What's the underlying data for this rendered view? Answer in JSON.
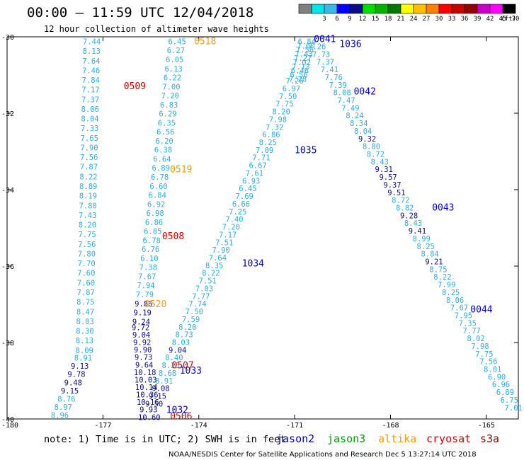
{
  "chart_data": {
    "type": "scatter",
    "title": "00:00 – 11:59 UTC 12/04/2018",
    "subtitle": "12 hour collection of altimeter wave heights",
    "xlim": [
      -180,
      -164
    ],
    "ylim": [
      -40,
      -30
    ],
    "x_ticks": [
      {
        "value": -180,
        "label": "-180"
      },
      {
        "value": -177,
        "label": "-177"
      },
      {
        "value": -174,
        "label": "-174"
      },
      {
        "value": -171,
        "label": "-171"
      },
      {
        "value": -168,
        "label": "-168"
      },
      {
        "value": -165,
        "label": "-165"
      }
    ],
    "y_ticks": [
      {
        "value": -30,
        "label": "-30"
      },
      {
        "value": -32,
        "label": "-32"
      },
      {
        "value": -34,
        "label": "-34"
      },
      {
        "value": -36,
        "label": "-36"
      },
      {
        "value": -38,
        "label": "-38"
      },
      {
        "value": -40,
        "label": "-40"
      }
    ],
    "color_scale": {
      "unit_label": "(ft)",
      "bins": [
        {
          "label": "",
          "color": "#808080"
        },
        {
          "label": "3",
          "color": "#00e5e5"
        },
        {
          "label": "6",
          "color": "#38b7e8"
        },
        {
          "label": "9",
          "color": "#0000ff"
        },
        {
          "label": "12",
          "color": "#0b0b8e"
        },
        {
          "label": "15",
          "color": "#00e000"
        },
        {
          "label": "18",
          "color": "#00b400"
        },
        {
          "label": "21",
          "color": "#007800"
        },
        {
          "label": "24",
          "color": "#ffff00"
        },
        {
          "label": "27",
          "color": "#ffc000"
        },
        {
          "label": "30",
          "color": "#ff8000"
        },
        {
          "label": "33",
          "color": "#ff0000"
        },
        {
          "label": "36",
          "color": "#c80000"
        },
        {
          "label": "39",
          "color": "#960000"
        },
        {
          "label": "42",
          "color": "#c800c8"
        },
        {
          "label": "45",
          "color": "#ff00ff"
        },
        {
          "label": "70",
          "color": "#000000"
        }
      ]
    },
    "tracks": [
      {
        "id": "L1",
        "satellite": "jason2",
        "start": [
          -177.35,
          -30.12
        ],
        "end": [
          -177.58,
          -38.2
        ],
        "values": [
          "7.44",
          "8.13",
          "7.64",
          "7.46",
          "7.84",
          "7.17",
          "7.37",
          "8.06",
          "8.04",
          "7.33",
          "7.65",
          "7.90",
          "7.56",
          "7.87",
          "8.22",
          "8.89",
          "8.19",
          "7.80",
          "7.43",
          "8.20",
          "7.75",
          "7.56",
          "7.80",
          "7.70",
          "7.60",
          "7.60",
          "7.87",
          "8.75",
          "8.47",
          "8.03",
          "8.30",
          "8.13",
          "8.09"
        ]
      },
      {
        "id": "L2",
        "satellite": "jason2",
        "start": [
          -177.62,
          -38.4
        ],
        "end": [
          -178.35,
          -39.9
        ],
        "values": [
          "8.91",
          "9.13",
          "9.78",
          "9.48",
          "9.15",
          "8.76",
          "8.97",
          "8.96"
        ]
      },
      {
        "id": "M1",
        "satellite": "jason2",
        "start": [
          -174.68,
          -30.12
        ],
        "end": [
          -175.8,
          -37.45
        ],
        "values": [
          "6.45",
          "6.27",
          "6.05",
          "6.13",
          "6.22",
          "7.00",
          "7.20",
          "6.83",
          "6.29",
          "6.35",
          "6.56",
          "6.20",
          "6.38",
          "6.64",
          "6.89",
          "6.78",
          "6.60",
          "6.84",
          "6.92",
          "6.98",
          "6.86",
          "6.85",
          "6.78",
          "6.76",
          "6.10",
          "7.38",
          "7.67",
          "7.94",
          "7.79",
          "9.86",
          "9.19",
          "9.24"
        ]
      },
      {
        "id": "M2",
        "satellite": "jason2",
        "start": [
          -175.82,
          -37.6
        ],
        "end": [
          -175.55,
          -39.95
        ],
        "values": [
          "9.72",
          "9.04",
          "9.92",
          "9.90",
          "9.73",
          "9.64",
          "10.18",
          "10.03",
          "10.14",
          "10.36",
          "10.16",
          "9.93",
          "10.60"
        ]
      },
      {
        "id": "N1",
        "satellite": "jason2",
        "start": [
          -171.0,
          -31.15
        ],
        "end": [
          -175.4,
          -39.6
        ],
        "values": [
          "7.26",
          "6.97",
          "7.50",
          "7.75",
          "8.20",
          "7.98",
          "7.32",
          "6.86",
          "8.25",
          "7.09",
          "7.71",
          "6.67",
          "7.61",
          "6.93",
          "6.45",
          "7.69",
          "6.66",
          "7.25",
          "7.40",
          "7.20",
          "7.17",
          "7.51",
          "7.90",
          "7.64",
          "8.35",
          "8.22",
          "7.51",
          "7.03",
          "7.77",
          "7.74",
          "7.50",
          "7.59",
          "8.20",
          "8.73",
          "8.03",
          "9.04",
          "8.40",
          "8.25",
          "8.68",
          "8.91",
          "9.08",
          "9.15",
          "9.50"
        ]
      },
      {
        "id": "R1",
        "satellite": "jason2",
        "start": [
          -170.62,
          -30.12
        ],
        "end": [
          -170.9,
          -31.1
        ],
        "values": [
          "6.84",
          "7.60",
          "7.56",
          "7.43",
          "7.27",
          "7.02",
          "7.13",
          "6.46",
          "6.56",
          "7.28"
        ]
      },
      {
        "id": "R2",
        "satellite": "jason2",
        "start": [
          -170.3,
          -30.25
        ],
        "end": [
          -164.15,
          -39.7
        ],
        "values": [
          "7.26",
          "7.73",
          "7.37",
          "7.41",
          "7.76",
          "7.39",
          "8.08",
          "7.47",
          "7.49",
          "8.24",
          "8.34",
          "8.04",
          "9.32",
          "8.80",
          "8.72",
          "8.43",
          "9.31",
          "9.57",
          "9.37",
          "9.51",
          "8.72",
          "8.82",
          "9.28",
          "8.43",
          "9.41",
          "8.99",
          "8.25",
          "8.84",
          "9.21",
          "8.75",
          "8.22",
          "7.99",
          "8.25",
          "8.06",
          "7.67",
          "7.95",
          "7.35",
          "7.77",
          "8.02",
          "7.98",
          "7.75",
          "7.56",
          "8.01",
          "6.90",
          "6.96",
          "6.89",
          "6.75",
          "7.01"
        ]
      }
    ],
    "pass_labels": [
      {
        "text": "0518",
        "satellite": "altika",
        "x": -174.15,
        "y": -30.1
      },
      {
        "text": "0509",
        "satellite": "cryosat",
        "x": -176.35,
        "y": -31.28
      },
      {
        "text": "0519",
        "satellite": "altika",
        "x": -174.9,
        "y": -33.45
      },
      {
        "text": "0508",
        "satellite": "cryosat",
        "x": -175.15,
        "y": -35.2
      },
      {
        "text": "0520",
        "satellite": "altika",
        "x": -175.7,
        "y": -36.98
      },
      {
        "text": "0507",
        "satellite": "cryosat",
        "x": -174.85,
        "y": -38.58
      },
      {
        "text": "0506",
        "satellite": "cryosat",
        "x": -174.9,
        "y": -39.92
      },
      {
        "text": "1033",
        "satellite": "jason2",
        "x": -174.6,
        "y": -38.72
      },
      {
        "text": "1032",
        "satellite": "jason2",
        "x": -175.02,
        "y": -39.75
      },
      {
        "text": "1034",
        "satellite": "jason2",
        "x": -172.65,
        "y": -35.92
      },
      {
        "text": "1035",
        "satellite": "jason2",
        "x": -171.0,
        "y": -32.95
      },
      {
        "text": "0041",
        "satellite": "jason2",
        "x": -170.4,
        "y": -30.05
      },
      {
        "text": "1036",
        "satellite": "jason2",
        "x": -169.6,
        "y": -30.18
      },
      {
        "text": "0042",
        "satellite": "jason2",
        "x": -169.15,
        "y": -31.42
      },
      {
        "text": "0043",
        "satellite": "jason2",
        "x": -166.7,
        "y": -34.45
      },
      {
        "text": "0044",
        "satellite": "jason2",
        "x": -165.5,
        "y": -37.12
      }
    ]
  },
  "footer": {
    "note": "note:  1) Time is in UTC;  2) SWH is in feet",
    "missions": [
      {
        "name": "jason2",
        "color": "#0000cc"
      },
      {
        "name": "jason3",
        "color": "#00a000"
      },
      {
        "name": "altika",
        "color": "#ff9900"
      },
      {
        "name": "cryosat",
        "color": "#dd0000"
      },
      {
        "name": "s3a",
        "color": "#990000"
      }
    ],
    "credit": "NOAA/NESDIS Center for Satellite Applications and Research    Dec  5 13:27:14 UTC 2018"
  },
  "colors": {
    "obs_light": "#2ab0e8",
    "obs_dark": "#0b0b8e",
    "frame": "#000000"
  }
}
